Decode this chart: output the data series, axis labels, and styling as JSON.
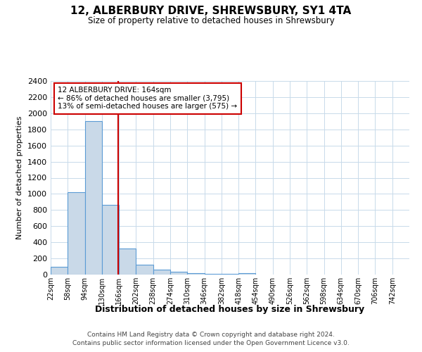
{
  "title": "12, ALBERBURY DRIVE, SHREWSBURY, SY1 4TA",
  "subtitle": "Size of property relative to detached houses in Shrewsbury",
  "xlabel": "Distribution of detached houses by size in Shrewsbury",
  "ylabel": "Number of detached properties",
  "bin_labels": [
    "22sqm",
    "58sqm",
    "94sqm",
    "130sqm",
    "166sqm",
    "202sqm",
    "238sqm",
    "274sqm",
    "310sqm",
    "346sqm",
    "382sqm",
    "418sqm",
    "454sqm",
    "490sqm",
    "526sqm",
    "562sqm",
    "598sqm",
    "634sqm",
    "670sqm",
    "706sqm",
    "742sqm"
  ],
  "bin_edges": [
    22,
    58,
    94,
    130,
    166,
    202,
    238,
    274,
    310,
    346,
    382,
    418,
    454,
    490,
    526,
    562,
    598,
    634,
    670,
    706,
    742
  ],
  "bar_heights": [
    100,
    1020,
    1900,
    860,
    325,
    125,
    60,
    35,
    20,
    10,
    5,
    18,
    0,
    0,
    0,
    0,
    0,
    0,
    0,
    0
  ],
  "bar_color": "#c9d9e8",
  "bar_edge_color": "#5b9bd5",
  "property_size": 164,
  "red_line_color": "#cc0000",
  "annotation_line1": "12 ALBERBURY DRIVE: 164sqm",
  "annotation_line2": "← 86% of detached houses are smaller (3,795)",
  "annotation_line3": "13% of semi-detached houses are larger (575) →",
  "annotation_box_facecolor": "#ffffff",
  "annotation_box_edgecolor": "#cc0000",
  "ylim": [
    0,
    2400
  ],
  "yticks": [
    0,
    200,
    400,
    600,
    800,
    1000,
    1200,
    1400,
    1600,
    1800,
    2000,
    2200,
    2400
  ],
  "footer_line1": "Contains HM Land Registry data © Crown copyright and database right 2024.",
  "footer_line2": "Contains public sector information licensed under the Open Government Licence v3.0.",
  "background_color": "#ffffff",
  "grid_color": "#c8daea"
}
